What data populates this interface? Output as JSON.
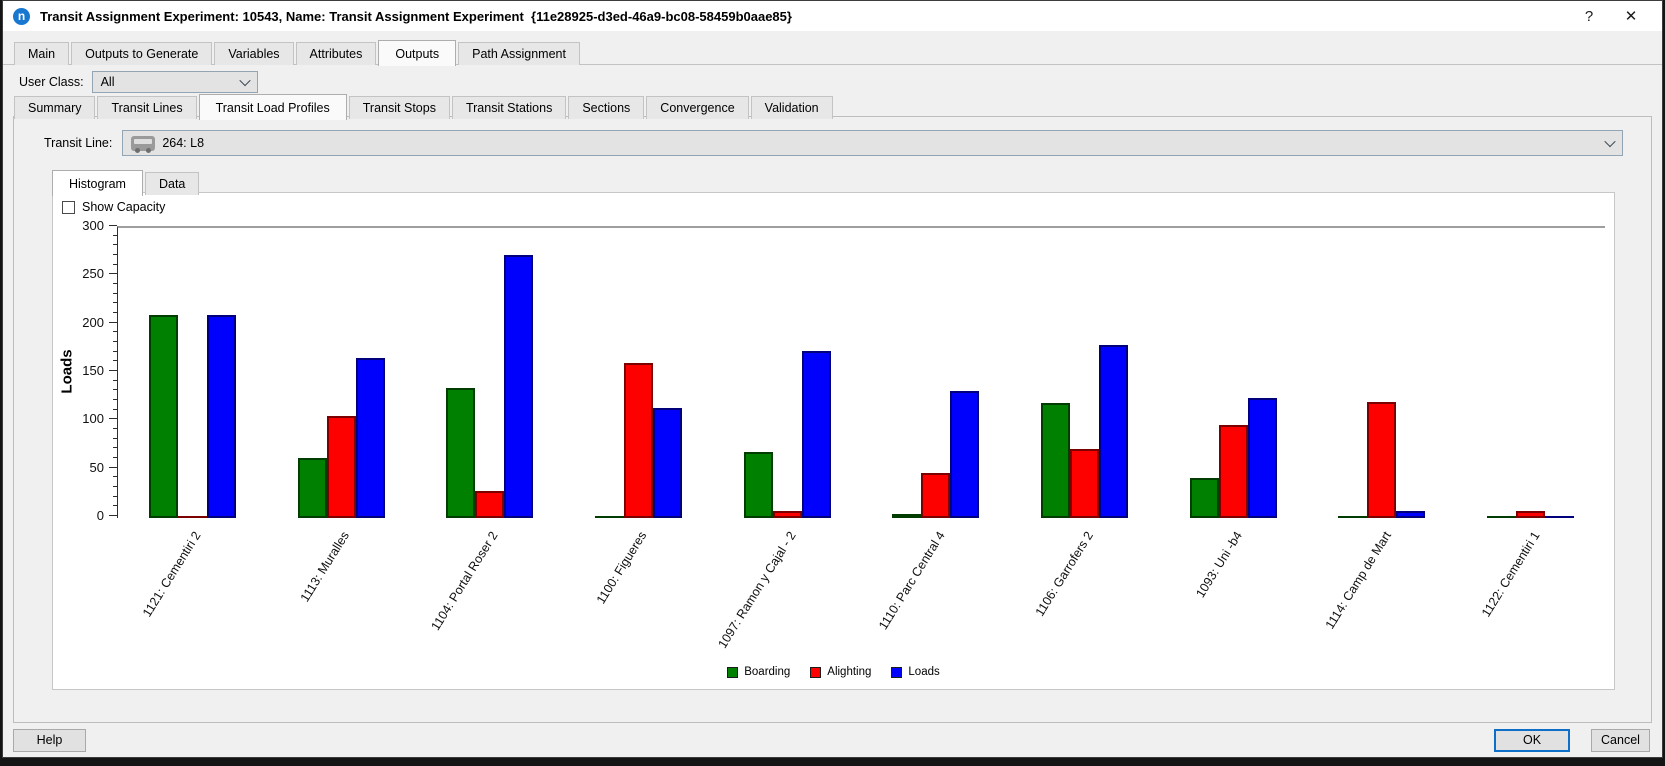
{
  "window": {
    "title": "Transit Assignment Experiment: 10543, Name: Transit Assignment Experiment  {11e28925-d3ed-46a9-bc08-58459b0aae85}",
    "logo_letter": "n",
    "help_symbol": "?",
    "close_symbol": "✕"
  },
  "main_tabs": {
    "items": [
      "Main",
      "Outputs to Generate",
      "Variables",
      "Attributes",
      "Outputs",
      "Path Assignment"
    ],
    "active": "Outputs"
  },
  "user_class": {
    "label": "User Class:",
    "value": "All"
  },
  "output_tabs": {
    "items": [
      "Summary",
      "Transit Lines",
      "Transit Load Profiles",
      "Transit Stops",
      "Transit Stations",
      "Sections",
      "Convergence",
      "Validation"
    ],
    "active": "Transit Load Profiles"
  },
  "transit_line": {
    "label": "Transit Line:",
    "value": "264: L8"
  },
  "view_tabs": {
    "items": [
      "Histogram",
      "Data"
    ],
    "active": "Histogram"
  },
  "show_capacity": {
    "label": "Show Capacity",
    "checked": false
  },
  "chart_data": {
    "type": "bar",
    "title": "",
    "xlabel": "",
    "ylabel": "Loads",
    "ylim": [
      0,
      300
    ],
    "ytick_major_step": 50,
    "ytick_minor_step": 10,
    "grid": false,
    "legend_position": "bottom",
    "categories": [
      "1121: Cementiri 2",
      "1113: Muralles",
      "1104: Portal Roser 2",
      "1100: Figueres",
      "1097: Ramon y Cajal - 2",
      "1110: Parc Central 4",
      "1106: Garrofers 2",
      "1093: Uni -b4",
      "1114: Camp de Mart",
      "1122: Cementiri 1"
    ],
    "series": [
      {
        "name": "Boarding",
        "color": "#008000",
        "border_color": "#013c01",
        "values": [
          210,
          62,
          135,
          1,
          68,
          4,
          119,
          41,
          2,
          1
        ]
      },
      {
        "name": "Alighting",
        "color": "#fd0000",
        "border_color": "#7c0000",
        "values": [
          1,
          106,
          28,
          160,
          7,
          47,
          71,
          96,
          120,
          7
        ]
      },
      {
        "name": "Loads",
        "color": "#0000fd",
        "border_color": "#00007c",
        "values": [
          210,
          166,
          272,
          114,
          173,
          131,
          179,
          124,
          7,
          1
        ]
      }
    ]
  },
  "buttons": {
    "help": "Help",
    "ok": "OK",
    "cancel": "Cancel"
  }
}
